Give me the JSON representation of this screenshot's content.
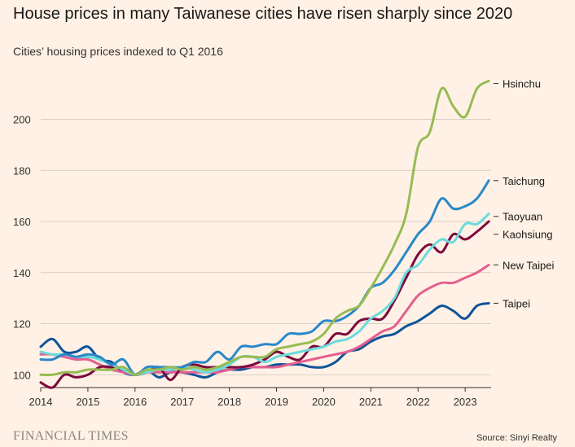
{
  "header": {
    "title": "House prices in many Taiwanese cities have risen sharply since 2020",
    "subtitle": "Cities’ housing prices indexed to Q1 2016"
  },
  "footer": {
    "brand": "FINANCIAL TIMES",
    "source": "Source: Sinyi Realty"
  },
  "chart_data": {
    "type": "line",
    "title": "House prices in many Taiwanese cities have risen sharply since 2020",
    "subtitle": "Cities’ housing prices indexed to Q1 2016",
    "xlim": [
      2014,
      2023.55
    ],
    "ylim": [
      95,
      218
    ],
    "x_ticks": [
      2014,
      2015,
      2016,
      2017,
      2018,
      2019,
      2020,
      2021,
      2022,
      2023
    ],
    "y_ticks": [
      100,
      120,
      140,
      160,
      180,
      200
    ],
    "grid": true,
    "legend": "direct labels at right end of lines",
    "series": [
      {
        "name": "Taipei",
        "color": "#0f5499",
        "x": [
          2014.0,
          2014.25,
          2014.5,
          2014.75,
          2015.0,
          2015.25,
          2015.5,
          2015.75,
          2016.0,
          2016.25,
          2016.5,
          2016.75,
          2017.0,
          2017.25,
          2017.5,
          2017.75,
          2018.0,
          2018.25,
          2018.5,
          2018.75,
          2019.0,
          2019.25,
          2019.5,
          2019.75,
          2020.0,
          2020.25,
          2020.5,
          2020.75,
          2021.0,
          2021.25,
          2021.5,
          2021.75,
          2022.0,
          2022.25,
          2022.5,
          2022.75,
          2023.0,
          2023.25,
          2023.5
        ],
        "values": [
          111,
          114,
          109,
          109,
          111,
          106,
          105,
          101,
          100,
          102,
          99,
          101,
          101,
          100,
          99,
          101,
          102,
          102,
          103,
          103,
          104,
          104,
          104,
          103,
          103,
          105,
          109,
          110,
          113,
          115,
          116,
          119,
          121,
          124,
          127,
          125,
          122,
          127,
          128
        ]
      },
      {
        "name": "New Taipei",
        "color": "#e55e8f",
        "x": [
          2014.0,
          2014.25,
          2014.5,
          2014.75,
          2015.0,
          2015.25,
          2015.5,
          2015.75,
          2016.0,
          2016.25,
          2016.5,
          2016.75,
          2017.0,
          2017.25,
          2017.5,
          2017.75,
          2018.0,
          2018.25,
          2018.5,
          2018.75,
          2019.0,
          2019.25,
          2019.5,
          2019.75,
          2020.0,
          2020.25,
          2020.5,
          2020.75,
          2021.0,
          2021.25,
          2021.5,
          2021.75,
          2022.0,
          2022.25,
          2022.5,
          2022.75,
          2023.0,
          2023.25,
          2023.5
        ],
        "values": [
          108,
          108,
          107,
          106,
          106,
          104,
          102,
          101,
          100,
          101,
          101,
          101,
          101,
          101,
          101,
          101,
          102,
          103,
          103,
          103,
          103,
          104,
          105,
          106,
          107,
          108,
          109,
          111,
          114,
          117,
          119,
          125,
          131,
          134,
          136,
          136,
          138,
          140,
          143
        ]
      },
      {
        "name": "Kaohsiung",
        "color": "#7c0a3d",
        "x": [
          2014.0,
          2014.25,
          2014.5,
          2014.75,
          2015.0,
          2015.25,
          2015.5,
          2015.75,
          2016.0,
          2016.25,
          2016.5,
          2016.75,
          2017.0,
          2017.25,
          2017.5,
          2017.75,
          2018.0,
          2018.25,
          2018.5,
          2018.75,
          2019.0,
          2019.25,
          2019.5,
          2019.75,
          2020.0,
          2020.25,
          2020.5,
          2020.75,
          2021.0,
          2021.25,
          2021.5,
          2021.75,
          2022.0,
          2022.25,
          2022.5,
          2022.75,
          2023.0,
          2023.25,
          2023.5
        ],
        "values": [
          97,
          95,
          100,
          99,
          100,
          103,
          103,
          102,
          100,
          101,
          103,
          98,
          103,
          104,
          103,
          103,
          103,
          103,
          104,
          106,
          109,
          107,
          106,
          111,
          111,
          116,
          116,
          121,
          122,
          122,
          129,
          138,
          147,
          151,
          148,
          155,
          153,
          156,
          160
        ]
      },
      {
        "name": "Taoyuan",
        "color": "#6bdbdd",
        "x": [
          2014.0,
          2014.25,
          2014.5,
          2014.75,
          2015.0,
          2015.25,
          2015.5,
          2015.75,
          2016.0,
          2016.25,
          2016.5,
          2016.75,
          2017.0,
          2017.25,
          2017.5,
          2017.75,
          2018.0,
          2018.25,
          2018.5,
          2018.75,
          2019.0,
          2019.25,
          2019.5,
          2019.75,
          2020.0,
          2020.25,
          2020.5,
          2020.75,
          2021.0,
          2021.25,
          2021.5,
          2021.75,
          2022.0,
          2022.25,
          2022.5,
          2022.75,
          2023.0,
          2023.25,
          2023.5
        ],
        "values": [
          109,
          108,
          108,
          107,
          107,
          106,
          104,
          102,
          100,
          101,
          102,
          102,
          103,
          102,
          101,
          102,
          104,
          107,
          107,
          105,
          107,
          108,
          109,
          110,
          111,
          113,
          114,
          117,
          122,
          125,
          130,
          140,
          143,
          149,
          153,
          152,
          159,
          159,
          163
        ]
      },
      {
        "name": "Taichung",
        "color": "#2a88c8",
        "x": [
          2014.0,
          2014.25,
          2014.5,
          2014.75,
          2015.0,
          2015.25,
          2015.5,
          2015.75,
          2016.0,
          2016.25,
          2016.5,
          2016.75,
          2017.0,
          2017.25,
          2017.5,
          2017.75,
          2018.0,
          2018.25,
          2018.5,
          2018.75,
          2019.0,
          2019.25,
          2019.5,
          2019.75,
          2020.0,
          2020.25,
          2020.5,
          2020.75,
          2021.0,
          2021.25,
          2021.5,
          2021.75,
          2022.0,
          2022.25,
          2022.5,
          2022.75,
          2023.0,
          2023.25,
          2023.5
        ],
        "values": [
          106,
          106,
          108,
          107,
          108,
          107,
          104,
          106,
          100,
          103,
          103,
          103,
          103,
          105,
          105,
          109,
          106,
          111,
          111,
          112,
          112,
          116,
          116,
          117,
          121,
          121,
          123,
          127,
          134,
          136,
          141,
          148,
          155,
          160,
          169,
          165,
          166,
          169,
          176
        ]
      },
      {
        "name": "Hsinchu",
        "color": "#96bc52",
        "x": [
          2014.0,
          2014.25,
          2014.5,
          2014.75,
          2015.0,
          2015.25,
          2015.5,
          2015.75,
          2016.0,
          2016.25,
          2016.5,
          2016.75,
          2017.0,
          2017.25,
          2017.5,
          2017.75,
          2018.0,
          2018.25,
          2018.5,
          2018.75,
          2019.0,
          2019.25,
          2019.5,
          2019.75,
          2020.0,
          2020.25,
          2020.5,
          2020.75,
          2021.0,
          2021.25,
          2021.5,
          2021.75,
          2022.0,
          2022.25,
          2022.5,
          2022.75,
          2023.0,
          2023.25,
          2023.5
        ],
        "values": [
          100,
          100,
          101,
          101,
          102,
          102,
          102,
          103,
          100,
          102,
          102,
          103,
          102,
          103,
          102,
          103,
          105,
          107,
          107,
          107,
          110,
          111,
          112,
          113,
          116,
          122,
          125,
          127,
          134,
          142,
          151,
          163,
          189,
          195,
          212,
          205,
          201,
          212,
          215
        ]
      }
    ],
    "labels": [
      {
        "series": "Hsinchu",
        "text": "Hsinchu",
        "y": 214
      },
      {
        "series": "Taichung",
        "text": "Taichung",
        "y": 176
      },
      {
        "series": "Taoyuan",
        "text": "Taoyuan",
        "y": 162
      },
      {
        "series": "Kaohsiung",
        "text": "Kaohsiung",
        "y": 155
      },
      {
        "series": "New Taipei",
        "text": "New Taipei",
        "y": 143
      },
      {
        "series": "Taipei",
        "text": "Taipei",
        "y": 128
      }
    ]
  }
}
